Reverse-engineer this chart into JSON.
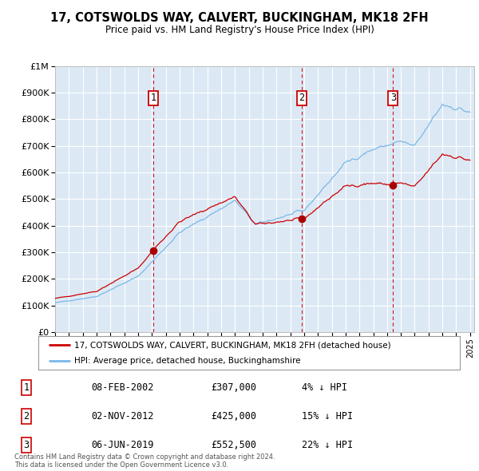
{
  "title": "17, COTSWOLDS WAY, CALVERT, BUCKINGHAM, MK18 2FH",
  "subtitle": "Price paid vs. HM Land Registry's House Price Index (HPI)",
  "background_color": "#dce9f5",
  "grid_color": "#ffffff",
  "ylim": [
    0,
    1000000
  ],
  "yticks": [
    0,
    100000,
    200000,
    300000,
    400000,
    500000,
    600000,
    700000,
    800000,
    900000,
    1000000
  ],
  "ytick_labels": [
    "£0",
    "£100K",
    "£200K",
    "£300K",
    "£400K",
    "£500K",
    "£600K",
    "£700K",
    "£800K",
    "£900K",
    "£1M"
  ],
  "hpi_color": "#7ab8e8",
  "price_color": "#cc0000",
  "purchases": [
    {
      "date_num": 2002.107,
      "price": 307000,
      "label": "1"
    },
    {
      "date_num": 2012.838,
      "price": 425000,
      "label": "2"
    },
    {
      "date_num": 2019.428,
      "price": 552500,
      "label": "3"
    }
  ],
  "legend_house_label": "17, COTSWOLDS WAY, CALVERT, BUCKINGHAM, MK18 2FH (detached house)",
  "legend_hpi_label": "HPI: Average price, detached house, Buckinghamshire",
  "footer1": "Contains HM Land Registry data © Crown copyright and database right 2024.",
  "footer2": "This data is licensed under the Open Government Licence v3.0.",
  "table_rows": [
    {
      "num": "1",
      "date": "08-FEB-2002",
      "price": "£307,000",
      "pct": "4% ↓ HPI"
    },
    {
      "num": "2",
      "date": "02-NOV-2012",
      "price": "£425,000",
      "pct": "15% ↓ HPI"
    },
    {
      "num": "3",
      "date": "06-JUN-2019",
      "price": "£552,500",
      "pct": "22% ↓ HPI"
    }
  ]
}
